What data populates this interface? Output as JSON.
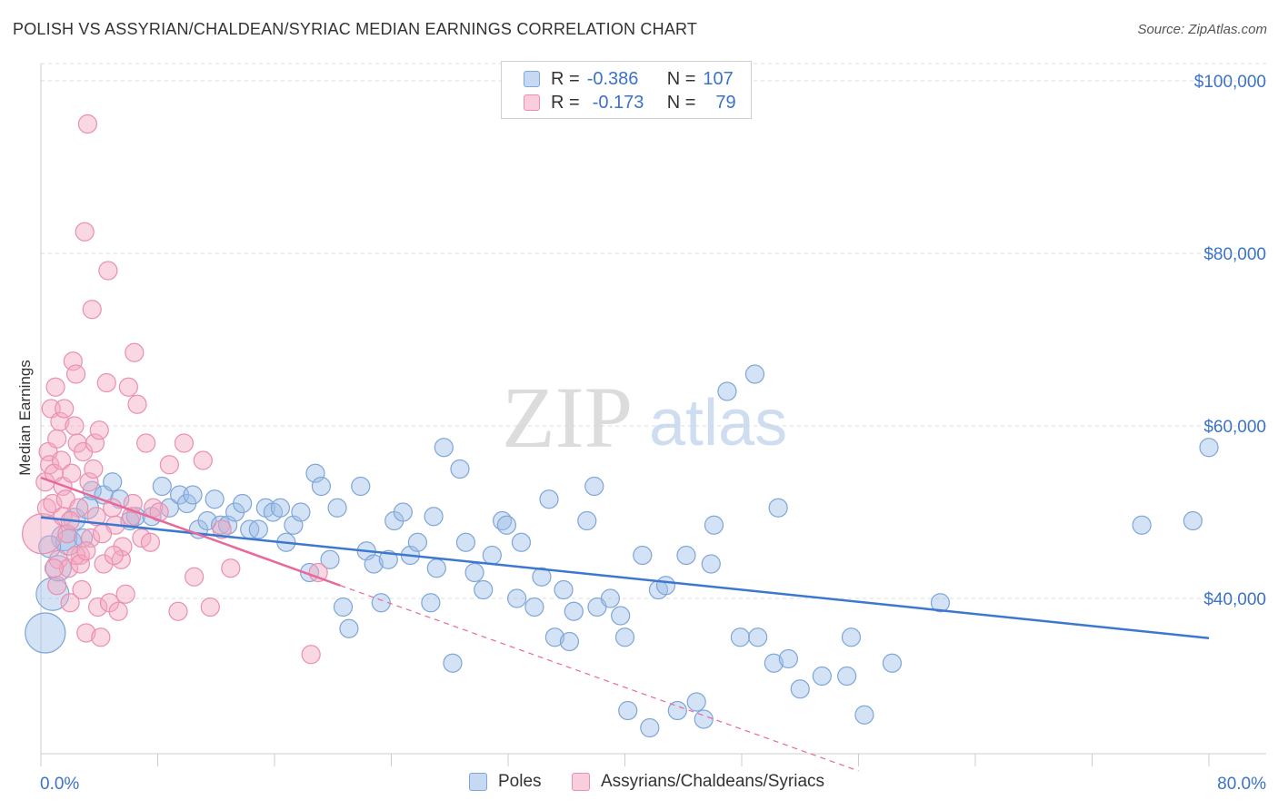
{
  "title": "POLISH VS ASSYRIAN/CHALDEAN/SYRIAC MEDIAN EARNINGS CORRELATION CHART",
  "source": "Source: ZipAtlas.com",
  "watermark": {
    "zip": "ZIP",
    "atlas": "atlas"
  },
  "legend": {
    "rows": [
      {
        "r_label": "R =",
        "r_value": "-0.386",
        "n_label": "N =",
        "n_value": "107",
        "color": "#9dbfe8"
      },
      {
        "r_label": "R =",
        "r_value": "-0.173",
        "n_label": "N =",
        "n_value": "79",
        "color": "#f4a8c2"
      }
    ]
  },
  "bottom_legend": [
    {
      "label": "Poles",
      "color": "#9dbfe8"
    },
    {
      "label": "Assyrians/Chaldeans/Syriacs",
      "color": "#f4a8c2"
    }
  ],
  "colors": {
    "blue": "#3c78d0",
    "blue_fill": "#9dbfe8",
    "pink": "#e8689a",
    "pink_fill": "#f4a8c2",
    "axis_text": "#3c72c8",
    "grid": "#dddddd"
  },
  "chart_data": {
    "type": "scatter",
    "title": "POLISH VS ASSYRIAN/CHALDEAN/SYRIAC MEDIAN EARNINGS CORRELATION CHART",
    "xlabel": "",
    "ylabel": "Median Earnings",
    "x_tick_labels": [
      "0.0%",
      "80.0%"
    ],
    "y_tick_labels": [
      "$40,000",
      "$60,000",
      "$80,000",
      "$100,000"
    ],
    "y_ticks": [
      40000,
      60000,
      80000,
      100000
    ],
    "xlim": [
      0,
      80
    ],
    "ylim": [
      22000,
      102000
    ],
    "grid": true,
    "legend_position": "top-center",
    "series": [
      {
        "name": "Poles",
        "color": "#3c78d0",
        "trend": {
          "x": [
            0,
            80
          ],
          "y": [
            49400,
            35400
          ]
        },
        "points": [
          [
            0.3,
            36000,
            22
          ],
          [
            0.8,
            40500,
            18
          ],
          [
            1.2,
            43500,
            14
          ],
          [
            1.6,
            47000,
            14
          ],
          [
            2.3,
            49200,
            12
          ],
          [
            3.2,
            50500,
            12
          ],
          [
            3.5,
            52500,
            10
          ],
          [
            4.3,
            52000,
            10
          ],
          [
            4.9,
            53500,
            10
          ],
          [
            5.4,
            51500,
            10
          ],
          [
            6.1,
            49000,
            10
          ],
          [
            6.5,
            49500,
            10
          ],
          [
            7.6,
            49500,
            10
          ],
          [
            8.3,
            53000,
            10
          ],
          [
            8.8,
            50500,
            10
          ],
          [
            9.5,
            52000,
            10
          ],
          [
            10.0,
            51000,
            10
          ],
          [
            10.4,
            52000,
            10
          ],
          [
            10.8,
            48000,
            10
          ],
          [
            11.4,
            49000,
            10
          ],
          [
            11.9,
            51500,
            10
          ],
          [
            12.3,
            48500,
            10
          ],
          [
            12.8,
            48500,
            10
          ],
          [
            13.3,
            50000,
            10
          ],
          [
            13.8,
            51000,
            10
          ],
          [
            14.3,
            48000,
            10
          ],
          [
            14.9,
            48000,
            10
          ],
          [
            15.4,
            50500,
            10
          ],
          [
            15.9,
            50000,
            10
          ],
          [
            16.4,
            50500,
            10
          ],
          [
            16.8,
            46500,
            10
          ],
          [
            17.3,
            48500,
            10
          ],
          [
            17.8,
            50000,
            10
          ],
          [
            18.4,
            43000,
            10
          ],
          [
            18.8,
            54500,
            10
          ],
          [
            19.2,
            53000,
            10
          ],
          [
            19.8,
            44500,
            10
          ],
          [
            20.3,
            50500,
            10
          ],
          [
            20.7,
            39000,
            10
          ],
          [
            21.1,
            36500,
            10
          ],
          [
            21.9,
            53000,
            10
          ],
          [
            22.3,
            45500,
            10
          ],
          [
            22.8,
            44000,
            10
          ],
          [
            23.3,
            39500,
            10
          ],
          [
            23.8,
            44500,
            10
          ],
          [
            24.2,
            49000,
            10
          ],
          [
            24.8,
            50000,
            10
          ],
          [
            25.3,
            45000,
            10
          ],
          [
            25.8,
            46500,
            10
          ],
          [
            26.7,
            39500,
            10
          ],
          [
            26.9,
            49500,
            10
          ],
          [
            27.1,
            43500,
            10
          ],
          [
            27.6,
            57500,
            10
          ],
          [
            28.2,
            32500,
            10
          ],
          [
            28.7,
            55000,
            10
          ],
          [
            29.1,
            46500,
            10
          ],
          [
            29.7,
            43000,
            10
          ],
          [
            30.3,
            41000,
            10
          ],
          [
            30.9,
            45000,
            10
          ],
          [
            31.6,
            49000,
            10
          ],
          [
            31.9,
            48500,
            10
          ],
          [
            32.6,
            40000,
            10
          ],
          [
            32.9,
            46500,
            10
          ],
          [
            33.8,
            39000,
            10
          ],
          [
            34.3,
            42500,
            10
          ],
          [
            34.8,
            51500,
            10
          ],
          [
            35.2,
            35500,
            10
          ],
          [
            35.8,
            41000,
            10
          ],
          [
            36.2,
            35000,
            10
          ],
          [
            36.5,
            38500,
            10
          ],
          [
            37.4,
            49000,
            10
          ],
          [
            37.9,
            53000,
            10
          ],
          [
            38.1,
            39000,
            10
          ],
          [
            39.0,
            40000,
            10
          ],
          [
            39.7,
            38000,
            10
          ],
          [
            40.0,
            35500,
            10
          ],
          [
            40.2,
            27000,
            10
          ],
          [
            41.2,
            45000,
            10
          ],
          [
            41.7,
            25000,
            10
          ],
          [
            42.3,
            41000,
            10
          ],
          [
            42.8,
            41500,
            10
          ],
          [
            43.6,
            27000,
            10
          ],
          [
            44.2,
            45000,
            10
          ],
          [
            44.9,
            28000,
            10
          ],
          [
            45.4,
            26000,
            10
          ],
          [
            45.9,
            44000,
            10
          ],
          [
            46.1,
            48500,
            10
          ],
          [
            47.0,
            64000,
            10
          ],
          [
            47.9,
            35500,
            10
          ],
          [
            48.9,
            66000,
            10
          ],
          [
            49.1,
            35500,
            10
          ],
          [
            50.2,
            32500,
            10
          ],
          [
            50.5,
            50500,
            10
          ],
          [
            51.2,
            33000,
            10
          ],
          [
            52.0,
            29500,
            10
          ],
          [
            53.5,
            31000,
            10
          ],
          [
            55.2,
            31000,
            10
          ],
          [
            55.5,
            35500,
            10
          ],
          [
            56.4,
            26500,
            10
          ],
          [
            58.3,
            32500,
            10
          ],
          [
            61.6,
            39500,
            10
          ],
          [
            75.4,
            48500,
            10
          ],
          [
            78.9,
            49000,
            10
          ],
          [
            80.0,
            57500,
            10
          ],
          [
            1.9,
            46500,
            14
          ],
          [
            2.9,
            47000,
            10
          ],
          [
            0.6,
            46000,
            12
          ]
        ]
      },
      {
        "name": "Assyrians/Chaldeans/Syriacs",
        "color": "#e8689a",
        "trend": {
          "x": [
            0,
            20.5
          ],
          "y": [
            54000,
            41500
          ]
        },
        "trend_extension": {
          "x": [
            20.5,
            56.0
          ],
          "y": [
            41500,
            20000
          ]
        },
        "points": [
          [
            0.1,
            47500,
            22
          ],
          [
            0.3,
            53500,
            10
          ],
          [
            0.4,
            50500,
            10
          ],
          [
            0.5,
            57000,
            10
          ],
          [
            0.6,
            55500,
            10
          ],
          [
            0.7,
            62000,
            10
          ],
          [
            0.8,
            51000,
            10
          ],
          [
            0.9,
            54500,
            10
          ],
          [
            1.0,
            64500,
            10
          ],
          [
            1.1,
            58500,
            10
          ],
          [
            1.2,
            44500,
            10
          ],
          [
            1.3,
            60500,
            10
          ],
          [
            1.4,
            56000,
            10
          ],
          [
            1.5,
            53000,
            10
          ],
          [
            1.6,
            62000,
            10
          ],
          [
            1.7,
            51500,
            10
          ],
          [
            1.8,
            47500,
            10
          ],
          [
            1.9,
            43500,
            10
          ],
          [
            2.0,
            39500,
            10
          ],
          [
            2.1,
            54500,
            10
          ],
          [
            2.2,
            67500,
            10
          ],
          [
            2.3,
            60000,
            10
          ],
          [
            2.4,
            66000,
            10
          ],
          [
            2.5,
            58000,
            10
          ],
          [
            2.6,
            50500,
            10
          ],
          [
            2.7,
            45000,
            10
          ],
          [
            2.8,
            41000,
            10
          ],
          [
            2.9,
            57000,
            10
          ],
          [
            3.0,
            82500,
            10
          ],
          [
            3.1,
            36000,
            10
          ],
          [
            3.2,
            95000,
            10
          ],
          [
            3.3,
            53500,
            10
          ],
          [
            3.4,
            47000,
            10
          ],
          [
            3.5,
            73500,
            10
          ],
          [
            3.6,
            55000,
            10
          ],
          [
            3.7,
            58000,
            10
          ],
          [
            3.8,
            49500,
            10
          ],
          [
            3.9,
            39000,
            10
          ],
          [
            4.0,
            59500,
            10
          ],
          [
            4.1,
            35500,
            10
          ],
          [
            4.3,
            44000,
            10
          ],
          [
            4.5,
            65000,
            10
          ],
          [
            4.6,
            78000,
            10
          ],
          [
            4.7,
            39500,
            10
          ],
          [
            4.9,
            50500,
            10
          ],
          [
            5.1,
            48500,
            10
          ],
          [
            5.3,
            38500,
            10
          ],
          [
            5.5,
            44500,
            10
          ],
          [
            5.6,
            46000,
            10
          ],
          [
            5.8,
            40500,
            10
          ],
          [
            6.0,
            64500,
            10
          ],
          [
            6.2,
            49500,
            10
          ],
          [
            6.4,
            68500,
            10
          ],
          [
            6.6,
            62500,
            10
          ],
          [
            6.9,
            47000,
            10
          ],
          [
            7.2,
            58000,
            10
          ],
          [
            7.7,
            50500,
            10
          ],
          [
            8.1,
            50000,
            10
          ],
          [
            8.8,
            55500,
            10
          ],
          [
            9.4,
            38500,
            10
          ],
          [
            9.8,
            58000,
            10
          ],
          [
            10.5,
            42500,
            10
          ],
          [
            11.1,
            56000,
            10
          ],
          [
            11.6,
            39000,
            10
          ],
          [
            12.4,
            48000,
            10
          ],
          [
            13.0,
            43500,
            10
          ],
          [
            18.5,
            33500,
            10
          ],
          [
            19.0,
            43000,
            10
          ],
          [
            2.4,
            45000,
            10
          ],
          [
            1.5,
            49500,
            10
          ],
          [
            0.9,
            43500,
            10
          ],
          [
            2.7,
            44000,
            10
          ],
          [
            3.1,
            45500,
            10
          ],
          [
            4.2,
            47500,
            10
          ],
          [
            5.0,
            45000,
            10
          ],
          [
            6.3,
            51000,
            10
          ],
          [
            7.5,
            46500,
            10
          ],
          [
            1.1,
            41500,
            10
          ],
          [
            2.0,
            49000,
            10
          ]
        ]
      }
    ]
  }
}
